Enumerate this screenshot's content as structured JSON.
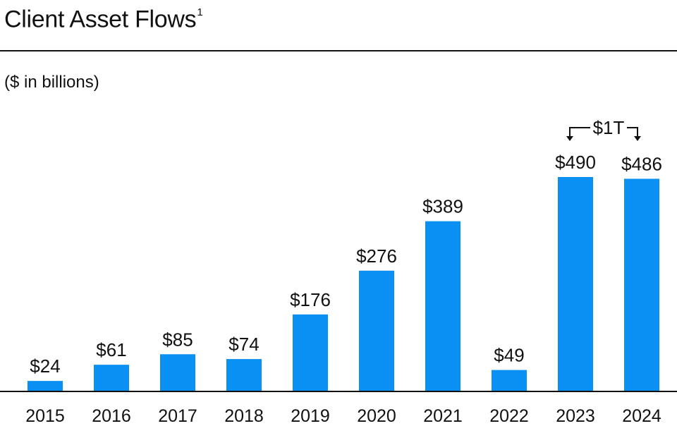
{
  "title": "Client Asset Flows",
  "title_footnote": "1",
  "unit_label": "($ in billions)",
  "accent_color": "#0a8ff2",
  "chart_data": {
    "type": "bar",
    "title": "Client Asset Flows",
    "categories": [
      "2015",
      "2016",
      "2017",
      "2018",
      "2019",
      "2020",
      "2021",
      "2022",
      "2023",
      "2024"
    ],
    "values": [
      24,
      61,
      85,
      74,
      176,
      276,
      389,
      49,
      490,
      486
    ],
    "data_labels": [
      "$24",
      "$61",
      "$85",
      "$74",
      "$176",
      "$276",
      "$389",
      "$49",
      "$490",
      "$486"
    ],
    "ylim": [
      0,
      510
    ],
    "grid": false,
    "annotation": {
      "text": "$1T",
      "spans": [
        "2023",
        "2024"
      ]
    }
  }
}
